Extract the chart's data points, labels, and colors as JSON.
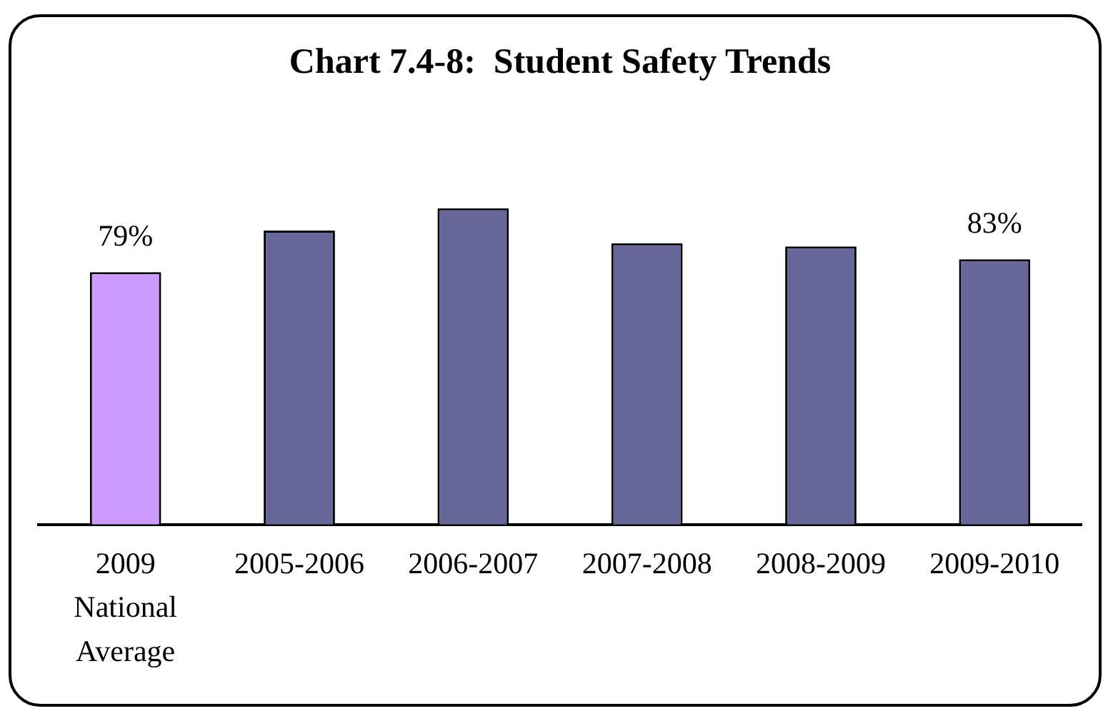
{
  "chart_data": {
    "type": "bar",
    "title": "Chart 7.4-8:  Student Safety Trends",
    "categories": [
      "2009 National Average",
      "2005-2006",
      "2006-2007",
      "2007-2008",
      "2008-2009",
      "2009-2010"
    ],
    "values": [
      79,
      92,
      99,
      88,
      87,
      83
    ],
    "colors": [
      "#cc99ff",
      "#666699",
      "#666699",
      "#666699",
      "#666699",
      "#666699"
    ],
    "value_labels": [
      "79%",
      null,
      null,
      null,
      null,
      "83%"
    ]
  }
}
